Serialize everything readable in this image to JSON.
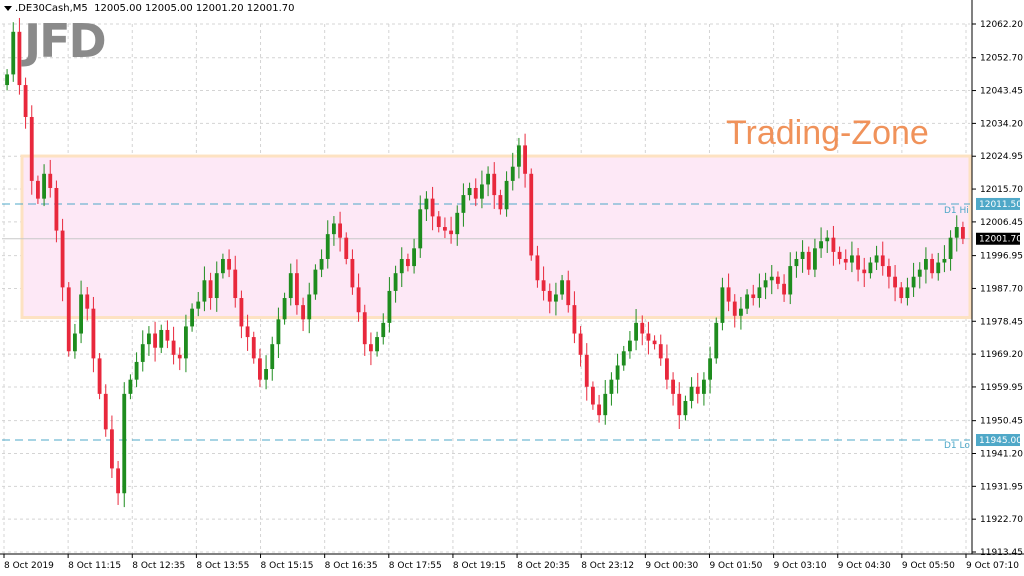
{
  "header": {
    "symbol": ".DE30Cash,M5",
    "ohlc": "12005.00 12005.00 12001.20 12001.70"
  },
  "logo": {
    "text": "JFD"
  },
  "zone_label": "Trading-Zone",
  "labels": {
    "d1_hi": "D1 Hi",
    "d1_lo": "D1 Lo"
  },
  "colors": {
    "bull": "#1e8c1e",
    "bear": "#e8283c",
    "zone_fill": "#fde8f6",
    "zone_border": "#fde2c2",
    "dash": "#4fa8c8"
  },
  "chart_data": {
    "type": "candlestick",
    "ylim": [
      11913.45,
      12066.6
    ],
    "y_ticks": [
      "12062.20",
      "12052.70",
      "12043.45",
      "12034.20",
      "12024.95",
      "12015.70",
      "12006.45",
      "11996.95",
      "11987.70",
      "11978.45",
      "11969.20",
      "11959.95",
      "11950.45",
      "11941.20",
      "11931.95",
      "11922.70",
      "11913.45"
    ],
    "x_ticks": [
      "8 Oct 2019",
      "8 Oct 11:15",
      "8 Oct 12:35",
      "8 Oct 13:55",
      "8 Oct 15:15",
      "8 Oct 16:35",
      "8 Oct 17:55",
      "8 Oct 19:15",
      "8 Oct 20:35",
      "8 Oct 23:12",
      "9 Oct 00:30",
      "9 Oct 01:50",
      "9 Oct 03:10",
      "9 Oct 04:30",
      "9 Oct 05:50",
      "9 Oct 07:10"
    ],
    "levels": {
      "d1_hi": 12011.5,
      "d1_lo": 11945.0,
      "current": 12001.7
    },
    "price_tags": [
      "12011.50",
      "11945.00",
      "12001.70"
    ],
    "trading_zone": {
      "low": 11979.5,
      "high": 12025.0
    },
    "closes": [
      12048,
      12060,
      12045,
      12036,
      12018,
      12013,
      12020,
      12016,
      12004,
      11988,
      11970,
      11975,
      11986,
      11982,
      11968,
      11958,
      11948,
      11937,
      11930,
      11958,
      11962,
      11967,
      11972,
      11975,
      11971,
      11976,
      11973,
      11969,
      11968,
      11977,
      11982,
      11984,
      11990,
      11985,
      11992,
      11996,
      11993,
      11985,
      11977,
      11974,
      11968,
      11962,
      11965,
      11972,
      11979,
      11985,
      11992,
      11983,
      11979,
      11986,
      11993,
      11996,
      12003,
      12006,
      12002,
      11996,
      11988,
      11981,
      11972,
      11970,
      11974,
      11978,
      11987,
      11992,
      11996,
      11994,
      11999,
      12010,
      12013,
      12008,
      12005,
      12004,
      12003,
      12009,
      12014,
      12016,
      12013,
      12017,
      12020,
      12014,
      12010,
      12018,
      12022,
      12028,
      12020,
      11997,
      11990,
      11987,
      11984,
      11986,
      11990,
      11983,
      11975,
      11969,
      11960,
      11955,
      11952,
      11958,
      11962,
      11966,
      11970,
      11973,
      11978,
      11975,
      11973,
      11972,
      11968,
      11962,
      11958,
      11952,
      11956,
      11960,
      11958,
      11962,
      11968,
      11978,
      11988,
      11984,
      11980,
      11982,
      11986,
      11985,
      11988,
      11990,
      11991,
      11989,
      11986,
      11994,
      11996,
      11998,
      11993,
      11999,
      12001,
      12002,
      11998,
      11996,
      11995,
      11997,
      11993,
      11992,
      11995,
      11997,
      11994,
      11991,
      11988,
      11985,
      11988,
      11991,
      11993,
      11996,
      11992,
      11995,
      11996,
      12002,
      12005,
      12001.7
    ]
  }
}
